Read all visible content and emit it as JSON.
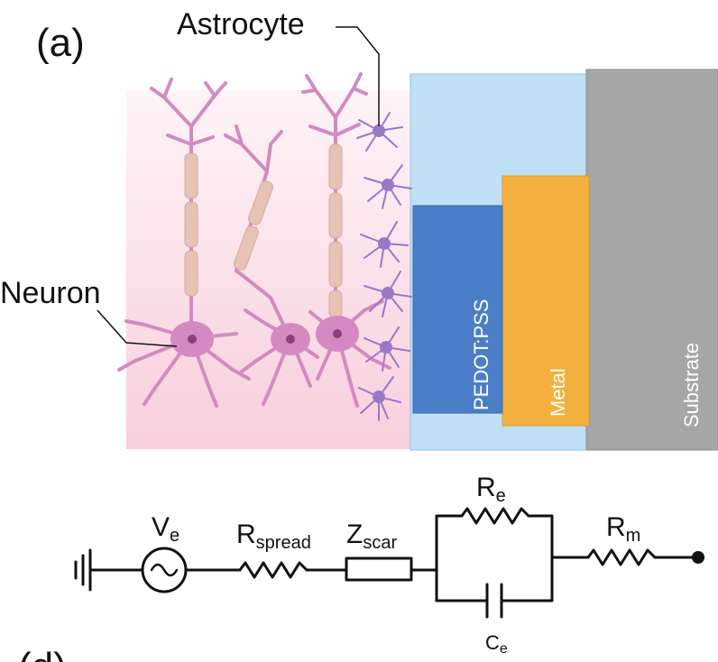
{
  "panel_label": "(a)",
  "next_panel_label": "(d)",
  "labels": {
    "astrocyte": "Astrocyte",
    "neuron": "Neuron"
  },
  "layers": {
    "pedot": "PEDOT:PSS",
    "metal": "Metal",
    "substrate": "Substrate"
  },
  "circuit": {
    "source": {
      "main": "V",
      "sub": "e"
    },
    "r_spread": {
      "main": "R",
      "sub": "spread"
    },
    "z_scar": {
      "main": "Z",
      "sub": "scar"
    },
    "r_e": {
      "main": "R",
      "sub": "e"
    },
    "c_e": {
      "main": "C",
      "sub": "e"
    },
    "r_m": {
      "main": "R",
      "sub": "m"
    }
  },
  "colors": {
    "tissue": "#f8d3df",
    "neuron": "#d48ac0",
    "astrocyte": "#9a78c6",
    "myelin": "#e6c3b5",
    "hydrogel_light_blue": "#bfe0f5",
    "pedot_blue": "#4a7fc8",
    "metal_orange": "#f4b03e",
    "substrate_gray": "#a6a6a6"
  }
}
